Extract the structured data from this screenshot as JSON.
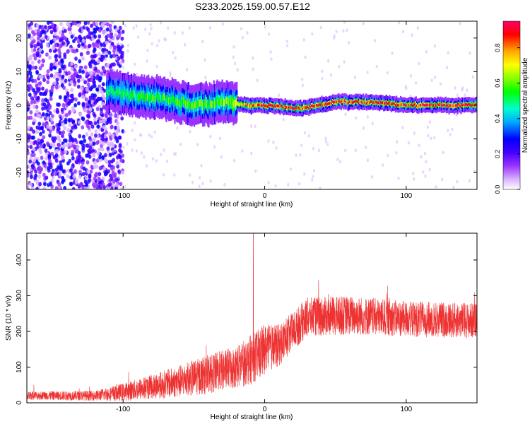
{
  "title": "S233.2025.159.00.57.E12",
  "chart_data": [
    {
      "type": "heatmap",
      "xlabel": "Height of straight line (km)",
      "ylabel": "Frequency (Hz)",
      "xlim": [
        -168,
        150
      ],
      "ylim": [
        -25,
        25
      ],
      "xticks": [
        -100,
        0,
        100
      ],
      "yticks": [
        -20,
        -10,
        0,
        10,
        20
      ],
      "colorbar": {
        "label": "Normalized spectral amplitude",
        "range": [
          0,
          0.95
        ],
        "ticks": [
          0.0,
          0.2,
          0.4,
          0.6,
          0.8
        ],
        "colormap": [
          "#ffffff",
          "#d9b3ff",
          "#9933ff",
          "#5500ff",
          "#0000ff",
          "#00aaff",
          "#00ffcc",
          "#00ff00",
          "#88ff00",
          "#ffff00",
          "#ffaa00",
          "#ff0000",
          "#ff0066"
        ]
      },
      "ridge": {
        "description_points": [
          {
            "x": -110,
            "freq": 4,
            "amp": 0.45
          },
          {
            "x": -90,
            "freq": 3,
            "amp": 0.5
          },
          {
            "x": -70,
            "freq": 2,
            "amp": 0.5
          },
          {
            "x": -50,
            "freq": 0,
            "amp": 0.55
          },
          {
            "x": -30,
            "freq": 1,
            "amp": 0.55
          },
          {
            "x": -15,
            "freq": 0,
            "amp": 0.75
          },
          {
            "x": 0,
            "freq": 0,
            "amp": 0.85
          },
          {
            "x": 25,
            "freq": -1,
            "amp": 0.85
          },
          {
            "x": 50,
            "freq": 1,
            "amp": 0.85
          },
          {
            "x": 75,
            "freq": 1,
            "amp": 0.85
          },
          {
            "x": 100,
            "freq": 0,
            "amp": 0.85
          },
          {
            "x": 125,
            "freq": 0,
            "amp": 0.85
          },
          {
            "x": 145,
            "freq": 0,
            "amp": 0.85
          }
        ],
        "noise_region_x": [
          -168,
          -110
        ]
      }
    },
    {
      "type": "line",
      "xlabel": "Height of straight line (km)",
      "ylabel": "SNR (10 * v/v)",
      "xlim": [
        -168,
        150
      ],
      "ylim": [
        0,
        475
      ],
      "xticks": [
        -100,
        0,
        100
      ],
      "yticks": [
        0,
        100,
        200,
        300,
        400
      ],
      "color": "#ee3333",
      "envelope": [
        {
          "x": -168,
          "mean": 20,
          "spread": 12
        },
        {
          "x": -120,
          "mean": 20,
          "spread": 14
        },
        {
          "x": -100,
          "mean": 30,
          "spread": 25
        },
        {
          "x": -80,
          "mean": 45,
          "spread": 35
        },
        {
          "x": -60,
          "mean": 60,
          "spread": 45
        },
        {
          "x": -40,
          "mean": 80,
          "spread": 55
        },
        {
          "x": -20,
          "mean": 100,
          "spread": 60
        },
        {
          "x": -10,
          "mean": 120,
          "spread": 70
        },
        {
          "x": 0,
          "mean": 150,
          "spread": 70
        },
        {
          "x": 10,
          "mean": 160,
          "spread": 60
        },
        {
          "x": 20,
          "mean": 200,
          "spread": 55
        },
        {
          "x": 30,
          "mean": 240,
          "spread": 55
        },
        {
          "x": 60,
          "mean": 245,
          "spread": 55
        },
        {
          "x": 100,
          "mean": 235,
          "spread": 50
        },
        {
          "x": 150,
          "mean": 230,
          "spread": 50
        }
      ],
      "spike": {
        "x": -8,
        "y": 475
      }
    }
  ]
}
